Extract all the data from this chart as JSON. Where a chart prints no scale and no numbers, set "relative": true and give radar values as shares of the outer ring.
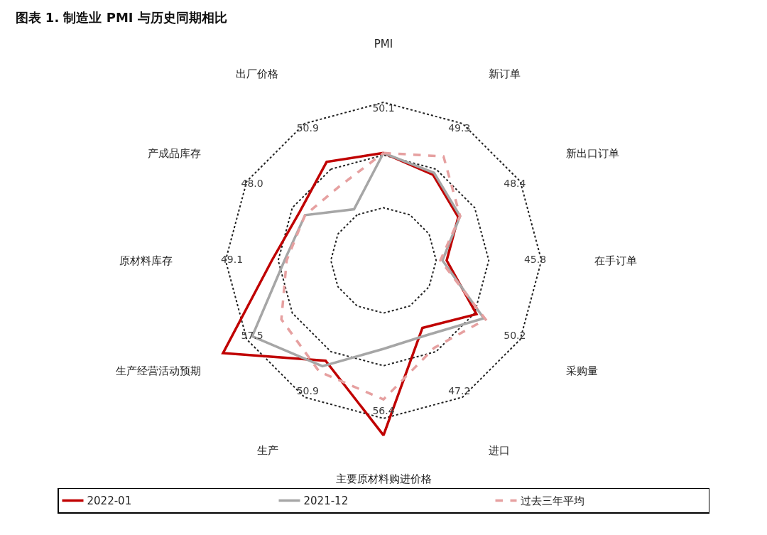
{
  "chart_data": {
    "type": "radar",
    "title": "图表 1. 制造业 PMI 与历史同期相比",
    "relative": true,
    "grid": true,
    "legend": "bottom",
    "marker": "none",
    "annotations": [
      "50.1",
      "49.3",
      "48.4",
      "45.8",
      "50.2",
      "47.2",
      "56.4",
      "50.9",
      "57.5",
      "49.1",
      "48.0",
      "50.9"
    ],
    "categories": [
      "PMI",
      "新订单",
      "新出口订单",
      "在手订单",
      "采购量",
      "进口",
      "主要原材料购进价格",
      "生产",
      "生产经营活动预期",
      "原材料库存",
      "产成品库存",
      "出厂价格"
    ],
    "series": [
      {
        "name": "2022-01",
        "color": "#c00000",
        "line_style": "solid",
        "values": [
          0.51,
          0.47,
          0.41,
          0.3,
          0.51,
          0.37,
          0.83,
          0.55,
          0.88,
          0.53,
          0.46,
          0.54
        ]
      },
      {
        "name": "2021-12",
        "color": "#a6a6a6",
        "line_style": "solid",
        "values": [
          0.51,
          0.48,
          0.42,
          0.28,
          0.55,
          0.41,
          0.42,
          0.58,
          0.72,
          0.47,
          0.43,
          0.28
        ]
      },
      {
        "name": "过去三年平均",
        "color": "#e6a0a0",
        "line_style": "dashed",
        "values": [
          0.51,
          0.57,
          0.42,
          0.27,
          0.56,
          0.48,
          0.66,
          0.61,
          0.56,
          0.46,
          0.43,
          0.41
        ]
      }
    ]
  }
}
